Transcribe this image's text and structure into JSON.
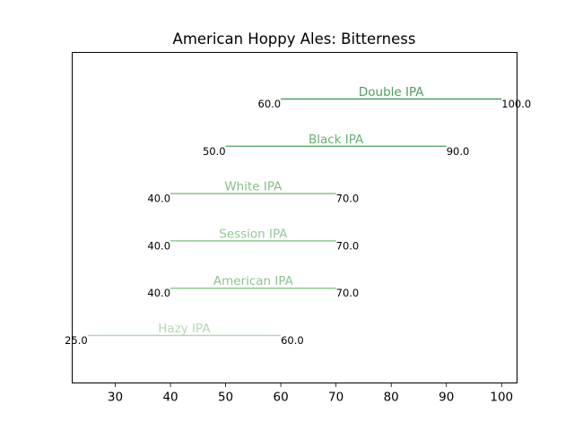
{
  "chart_data": {
    "type": "range",
    "title": "American Hoppy Ales: Bitterness",
    "xlabel": "",
    "ylabel": "",
    "xlim": [
      22.2,
      102.8
    ],
    "xticks": [
      "30",
      "40",
      "50",
      "60",
      "70",
      "80",
      "90",
      "100"
    ],
    "grid": false,
    "ranges": [
      {
        "name": "Double IPA",
        "low": 60.0,
        "high": 100.0,
        "low_label": "60.0",
        "high_label": "100.0",
        "color": "#4e9e5e"
      },
      {
        "name": "Black IPA",
        "low": 50.0,
        "high": 90.0,
        "low_label": "50.0",
        "high_label": "90.0",
        "color": "#68b074"
      },
      {
        "name": "White IPA",
        "low": 40.0,
        "high": 70.0,
        "low_label": "40.0",
        "high_label": "70.0",
        "color": "#86c18a"
      },
      {
        "name": "Session IPA",
        "low": 40.0,
        "high": 70.0,
        "low_label": "40.0",
        "high_label": "70.0",
        "color": "#93c795"
      },
      {
        "name": "American IPA",
        "low": 40.0,
        "high": 70.0,
        "low_label": "40.0",
        "high_label": "70.0",
        "color": "#8ec491"
      },
      {
        "name": "Hazy IPA",
        "low": 25.0,
        "high": 60.0,
        "low_label": "25.0",
        "high_label": "60.0",
        "color": "#b2dab0"
      }
    ]
  }
}
